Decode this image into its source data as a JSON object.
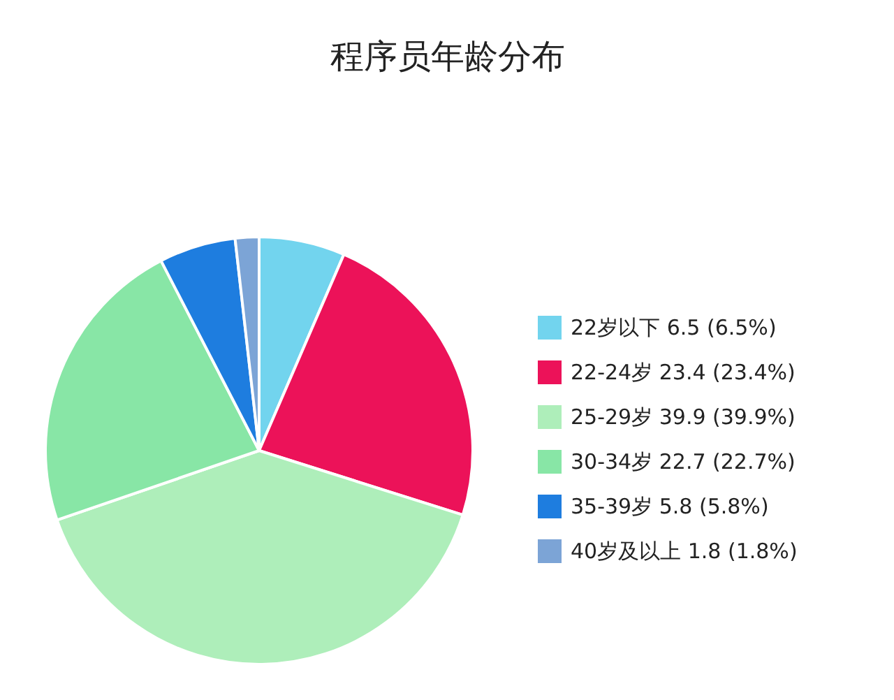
{
  "chart_data": {
    "type": "pie",
    "title": "程序员年龄分布",
    "categories": [
      "22岁以下",
      "22-24岁",
      "25-29岁",
      "30-34岁",
      "35-39岁",
      "40岁及以上"
    ],
    "values": [
      6.5,
      23.4,
      39.9,
      22.7,
      5.8,
      1.8
    ],
    "value_labels": [
      "6.5 (6.5%)",
      "23.4 (23.4%)",
      "39.9 (39.9%)",
      "22.7 (22.7%)",
      "5.8 (5.8%)",
      "1.8 (1.8%)"
    ],
    "colors": [
      "#72d4ee",
      "#ec1259",
      "#aeeeba",
      "#88e6a6",
      "#1e7ddf",
      "#7ca4d6"
    ],
    "legend": "right"
  }
}
